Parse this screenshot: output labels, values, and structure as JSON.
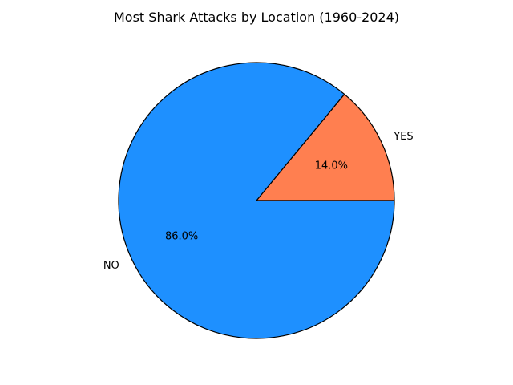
{
  "chart_data": {
    "type": "pie",
    "title": "Most Shark Attacks by Location (1960-2024)",
    "slices": [
      {
        "label": "YES",
        "value": 14.0,
        "pct_label": "14.0%",
        "color": "#ff7f50"
      },
      {
        "label": "NO",
        "value": 86.0,
        "pct_label": "86.0%",
        "color": "#1e90ff"
      }
    ],
    "start_angle_deg": 0,
    "direction": "counterclockwise",
    "edge_color": "#000000"
  }
}
